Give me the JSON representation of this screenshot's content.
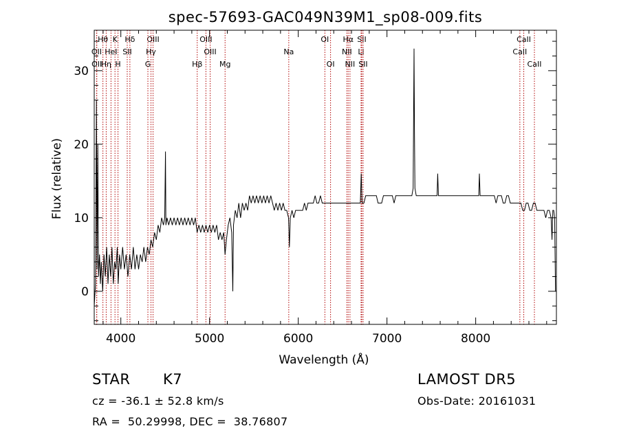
{
  "chart_data": {
    "type": "line",
    "title": "spec-57693-GAC049N39M1_sp08-009.fits",
    "xlabel": "Wavelength (Å)",
    "ylabel": "Flux (relative)",
    "xlim": [
      3700,
      8910
    ],
    "ylim": [
      -4.5,
      35.5
    ],
    "x_ticks": [
      4000,
      5000,
      6000,
      7000,
      8000
    ],
    "y_ticks": [
      0,
      10,
      20,
      30
    ],
    "x_tick_labels": [
      "4000",
      "5000",
      "6000",
      "7000",
      "8000"
    ],
    "y_tick_labels": [
      "0",
      "10",
      "20",
      "30"
    ],
    "line_color": "#000000",
    "marker_color": "#b00000",
    "series": [
      {
        "points": [
          [
            3700,
            -2
          ],
          [
            3715,
            1
          ],
          [
            3725,
            26
          ],
          [
            3732,
            3
          ],
          [
            3740,
            20
          ],
          [
            3748,
            2
          ],
          [
            3760,
            5
          ],
          [
            3770,
            1
          ],
          [
            3780,
            4
          ],
          [
            3795,
            0
          ],
          [
            3810,
            5
          ],
          [
            3825,
            2
          ],
          [
            3840,
            6
          ],
          [
            3855,
            1
          ],
          [
            3870,
            5
          ],
          [
            3885,
            2
          ],
          [
            3900,
            6
          ],
          [
            3915,
            1
          ],
          [
            3930,
            4
          ],
          [
            3945,
            3
          ],
          [
            3960,
            6
          ],
          [
            3970,
            1
          ],
          [
            3985,
            5
          ],
          [
            4000,
            3
          ],
          [
            4020,
            6
          ],
          [
            4040,
            3
          ],
          [
            4060,
            5
          ],
          [
            4080,
            2
          ],
          [
            4100,
            5
          ],
          [
            4120,
            3
          ],
          [
            4140,
            6
          ],
          [
            4160,
            3
          ],
          [
            4180,
            5
          ],
          [
            4200,
            3
          ],
          [
            4220,
            5
          ],
          [
            4240,
            4
          ],
          [
            4260,
            6
          ],
          [
            4280,
            4
          ],
          [
            4300,
            6
          ],
          [
            4320,
            5
          ],
          [
            4340,
            7
          ],
          [
            4360,
            6
          ],
          [
            4380,
            8
          ],
          [
            4400,
            7
          ],
          [
            4420,
            9
          ],
          [
            4440,
            8
          ],
          [
            4460,
            10
          ],
          [
            4480,
            9
          ],
          [
            4495,
            10
          ],
          [
            4503,
            19
          ],
          [
            4508,
            9
          ],
          [
            4520,
            10
          ],
          [
            4540,
            9
          ],
          [
            4560,
            10
          ],
          [
            4580,
            9
          ],
          [
            4600,
            10
          ],
          [
            4620,
            9
          ],
          [
            4640,
            10
          ],
          [
            4660,
            9
          ],
          [
            4680,
            10
          ],
          [
            4700,
            9
          ],
          [
            4720,
            10
          ],
          [
            4740,
            9
          ],
          [
            4760,
            10
          ],
          [
            4780,
            9
          ],
          [
            4800,
            10
          ],
          [
            4820,
            9
          ],
          [
            4840,
            10
          ],
          [
            4860,
            8
          ],
          [
            4880,
            9
          ],
          [
            4900,
            8
          ],
          [
            4920,
            9
          ],
          [
            4940,
            8
          ],
          [
            4960,
            9
          ],
          [
            4980,
            8
          ],
          [
            5000,
            9
          ],
          [
            5020,
            8
          ],
          [
            5040,
            9
          ],
          [
            5060,
            8
          ],
          [
            5080,
            9
          ],
          [
            5100,
            7
          ],
          [
            5120,
            8
          ],
          [
            5140,
            7
          ],
          [
            5160,
            8
          ],
          [
            5175,
            5
          ],
          [
            5190,
            7
          ],
          [
            5210,
            9
          ],
          [
            5230,
            10
          ],
          [
            5250,
            8
          ],
          [
            5262,
            0
          ],
          [
            5270,
            9
          ],
          [
            5290,
            11
          ],
          [
            5310,
            10
          ],
          [
            5330,
            12
          ],
          [
            5350,
            10
          ],
          [
            5370,
            12
          ],
          [
            5390,
            11
          ],
          [
            5410,
            12
          ],
          [
            5430,
            11
          ],
          [
            5450,
            13
          ],
          [
            5470,
            12
          ],
          [
            5490,
            13
          ],
          [
            5510,
            12
          ],
          [
            5530,
            13
          ],
          [
            5550,
            12
          ],
          [
            5570,
            13
          ],
          [
            5590,
            12
          ],
          [
            5610,
            13
          ],
          [
            5630,
            12
          ],
          [
            5650,
            13
          ],
          [
            5670,
            12
          ],
          [
            5690,
            13
          ],
          [
            5710,
            12
          ],
          [
            5730,
            11
          ],
          [
            5750,
            12
          ],
          [
            5770,
            11
          ],
          [
            5790,
            12
          ],
          [
            5810,
            11
          ],
          [
            5830,
            12
          ],
          [
            5850,
            11
          ],
          [
            5870,
            11
          ],
          [
            5890,
            10
          ],
          [
            5900,
            6
          ],
          [
            5910,
            10
          ],
          [
            5930,
            11
          ],
          [
            5950,
            10
          ],
          [
            5970,
            11
          ],
          [
            5990,
            11
          ],
          [
            6010,
            11
          ],
          [
            6030,
            11
          ],
          [
            6050,
            11
          ],
          [
            6070,
            12
          ],
          [
            6090,
            11
          ],
          [
            6110,
            12
          ],
          [
            6130,
            12
          ],
          [
            6150,
            12
          ],
          [
            6170,
            12
          ],
          [
            6190,
            13
          ],
          [
            6210,
            12
          ],
          [
            6230,
            12
          ],
          [
            6250,
            13
          ],
          [
            6270,
            12
          ],
          [
            6290,
            12
          ],
          [
            6310,
            12
          ],
          [
            6330,
            12
          ],
          [
            6350,
            12
          ],
          [
            6370,
            12
          ],
          [
            6390,
            12
          ],
          [
            6410,
            12
          ],
          [
            6430,
            12
          ],
          [
            6450,
            12
          ],
          [
            6470,
            12
          ],
          [
            6490,
            12
          ],
          [
            6510,
            12
          ],
          [
            6530,
            12
          ],
          [
            6550,
            12
          ],
          [
            6563,
            12
          ],
          [
            6580,
            12
          ],
          [
            6600,
            12
          ],
          [
            6620,
            12
          ],
          [
            6640,
            12
          ],
          [
            6660,
            12
          ],
          [
            6680,
            12
          ],
          [
            6700,
            12
          ],
          [
            6710,
            16
          ],
          [
            6720,
            12
          ],
          [
            6740,
            12
          ],
          [
            6760,
            13
          ],
          [
            6780,
            13
          ],
          [
            6800,
            13
          ],
          [
            6820,
            13
          ],
          [
            6840,
            13
          ],
          [
            6860,
            13
          ],
          [
            6880,
            13
          ],
          [
            6900,
            12
          ],
          [
            6920,
            12
          ],
          [
            6940,
            12
          ],
          [
            6960,
            13
          ],
          [
            6980,
            13
          ],
          [
            7000,
            13
          ],
          [
            7020,
            13
          ],
          [
            7040,
            13
          ],
          [
            7060,
            13
          ],
          [
            7080,
            12
          ],
          [
            7100,
            13
          ],
          [
            7120,
            13
          ],
          [
            7140,
            13
          ],
          [
            7160,
            13
          ],
          [
            7180,
            13
          ],
          [
            7200,
            13
          ],
          [
            7220,
            13
          ],
          [
            7240,
            13
          ],
          [
            7260,
            13
          ],
          [
            7280,
            13
          ],
          [
            7295,
            14
          ],
          [
            7305,
            33
          ],
          [
            7310,
            22
          ],
          [
            7315,
            14
          ],
          [
            7330,
            13
          ],
          [
            7350,
            13
          ],
          [
            7370,
            13
          ],
          [
            7390,
            13
          ],
          [
            7410,
            13
          ],
          [
            7430,
            13
          ],
          [
            7450,
            13
          ],
          [
            7470,
            13
          ],
          [
            7490,
            13
          ],
          [
            7510,
            13
          ],
          [
            7530,
            13
          ],
          [
            7550,
            13
          ],
          [
            7565,
            13
          ],
          [
            7572,
            16
          ],
          [
            7580,
            13
          ],
          [
            7600,
            13
          ],
          [
            7620,
            13
          ],
          [
            7640,
            13
          ],
          [
            7660,
            13
          ],
          [
            7680,
            13
          ],
          [
            7700,
            13
          ],
          [
            7720,
            13
          ],
          [
            7740,
            13
          ],
          [
            7760,
            13
          ],
          [
            7780,
            13
          ],
          [
            7800,
            13
          ],
          [
            7820,
            13
          ],
          [
            7840,
            13
          ],
          [
            7860,
            13
          ],
          [
            7880,
            13
          ],
          [
            7900,
            13
          ],
          [
            7920,
            13
          ],
          [
            7940,
            13
          ],
          [
            7960,
            13
          ],
          [
            7980,
            13
          ],
          [
            8000,
            13
          ],
          [
            8020,
            13
          ],
          [
            8035,
            13
          ],
          [
            8042,
            16
          ],
          [
            8050,
            13
          ],
          [
            8070,
            13
          ],
          [
            8090,
            13
          ],
          [
            8110,
            13
          ],
          [
            8130,
            13
          ],
          [
            8150,
            13
          ],
          [
            8170,
            13
          ],
          [
            8190,
            13
          ],
          [
            8210,
            13
          ],
          [
            8230,
            12
          ],
          [
            8250,
            13
          ],
          [
            8270,
            13
          ],
          [
            8290,
            13
          ],
          [
            8310,
            12
          ],
          [
            8330,
            12
          ],
          [
            8350,
            13
          ],
          [
            8370,
            13
          ],
          [
            8390,
            12
          ],
          [
            8410,
            12
          ],
          [
            8430,
            12
          ],
          [
            8450,
            12
          ],
          [
            8470,
            12
          ],
          [
            8490,
            12
          ],
          [
            8510,
            12
          ],
          [
            8530,
            11
          ],
          [
            8550,
            11
          ],
          [
            8570,
            12
          ],
          [
            8590,
            12
          ],
          [
            8610,
            11
          ],
          [
            8630,
            11
          ],
          [
            8650,
            12
          ],
          [
            8670,
            12
          ],
          [
            8690,
            11
          ],
          [
            8710,
            11
          ],
          [
            8730,
            11
          ],
          [
            8750,
            11
          ],
          [
            8770,
            11
          ],
          [
            8790,
            10
          ],
          [
            8810,
            11
          ],
          [
            8830,
            11
          ],
          [
            8850,
            10
          ],
          [
            8860,
            7
          ],
          [
            8870,
            11
          ],
          [
            8880,
            11
          ],
          [
            8890,
            10
          ],
          [
            8900,
            0
          ]
        ]
      }
    ],
    "line_markers": [
      {
        "label": "Hθ",
        "x": 3798,
        "row": 0
      },
      {
        "label": "K",
        "x": 3934,
        "row": 0
      },
      {
        "label": "Hδ",
        "x": 4102,
        "row": 0
      },
      {
        "label": "OIII",
        "x": 4363,
        "row": 0
      },
      {
        "label": "OIII",
        "x": 4959,
        "row": 0
      },
      {
        "label": "OI",
        "x": 6300,
        "row": 0
      },
      {
        "label": "Hα",
        "x": 6563,
        "row": 0
      },
      {
        "label": "SII",
        "x": 6716,
        "row": 0
      },
      {
        "label": "CaII",
        "x": 8542,
        "row": 0
      },
      {
        "label": "OII",
        "x": 3727,
        "row": 1
      },
      {
        "label": "HeI",
        "x": 3889,
        "row": 1
      },
      {
        "label": "SII",
        "x": 4072,
        "row": 1
      },
      {
        "label": "Hγ",
        "x": 4340,
        "row": 1
      },
      {
        "label": "OIII",
        "x": 5007,
        "row": 1
      },
      {
        "label": "NII",
        "x": 6548,
        "row": 1
      },
      {
        "label": "Li",
        "x": 6708,
        "row": 1
      },
      {
        "label": "CaII",
        "x": 8498,
        "row": 1
      },
      {
        "label": "OII",
        "x": 3729,
        "row": 2
      },
      {
        "label": "Hη",
        "x": 3835,
        "row": 2
      },
      {
        "label": "H",
        "x": 3968,
        "row": 2
      },
      {
        "label": "G",
        "x": 4305,
        "row": 2
      },
      {
        "label": "Hβ",
        "x": 4861,
        "row": 2
      },
      {
        "label": "Mg",
        "x": 5175,
        "row": 2
      },
      {
        "label": "Na",
        "x": 5893,
        "row": 1
      },
      {
        "label": "OI",
        "x": 6364,
        "row": 2
      },
      {
        "label": "NII",
        "x": 6583,
        "row": 2
      },
      {
        "label": "SII",
        "x": 6731,
        "row": 2
      },
      {
        "label": "CaII",
        "x": 8662,
        "row": 2
      }
    ]
  },
  "info": {
    "object_class": "STAR",
    "subclass": "K7",
    "survey": "LAMOST DR5",
    "redshift_line": "cz = -36.1 ± 52.8 km/s",
    "obs_date_line": "Obs-Date: 20161031",
    "coords_line": "RA =  50.29998, DEC =  38.76807"
  }
}
